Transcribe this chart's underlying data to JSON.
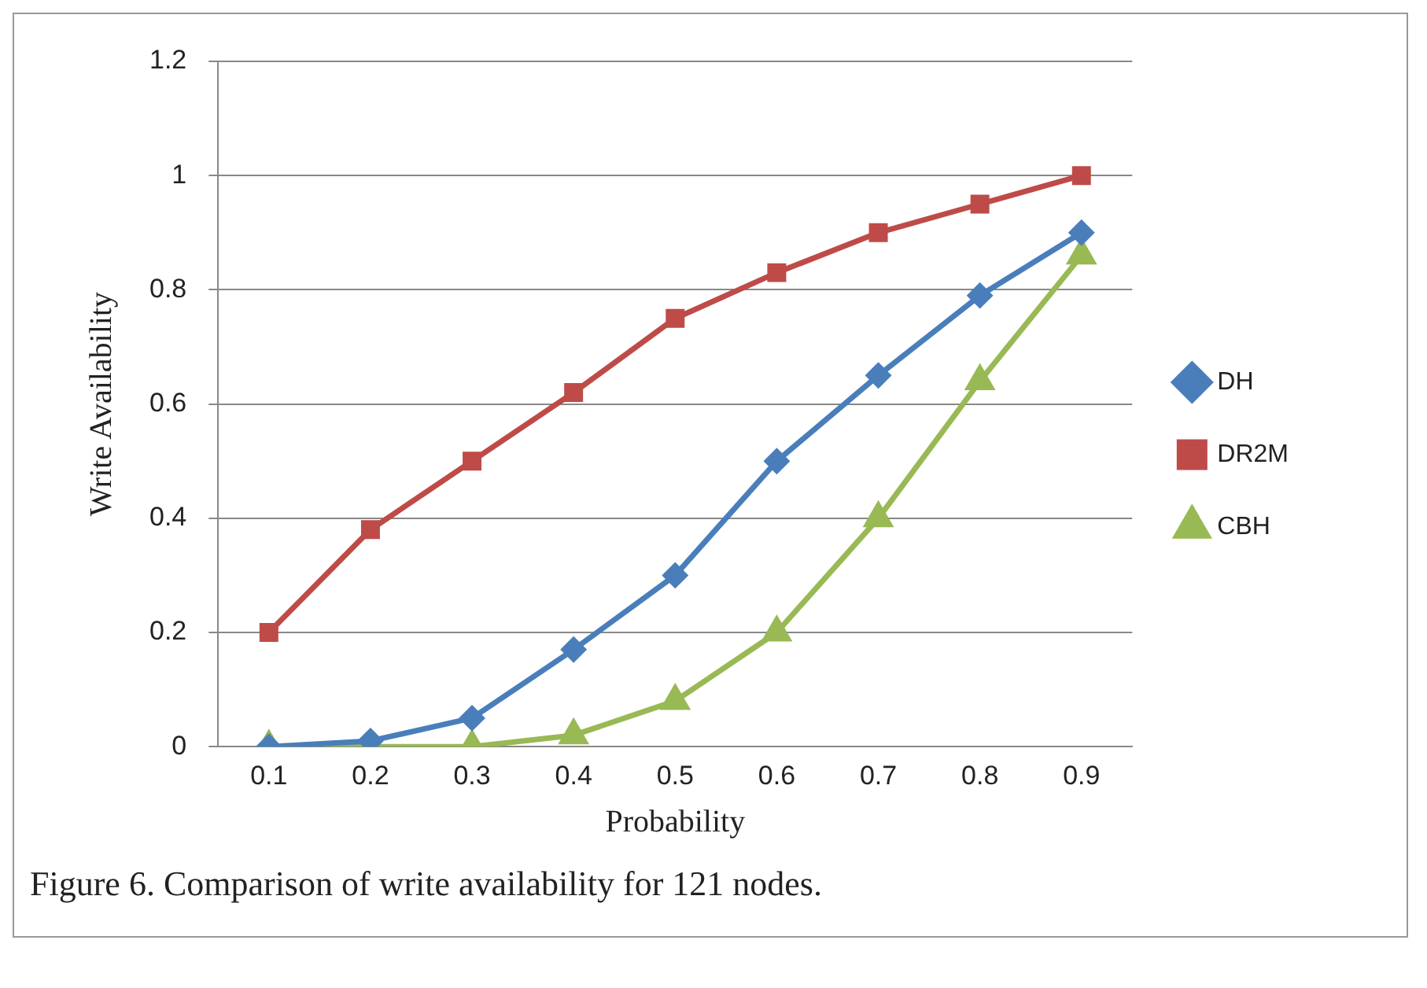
{
  "chart_data": {
    "type": "line",
    "xlabel": "Probability",
    "ylabel": "Write Availability",
    "categories": [
      "0.1",
      "0.2",
      "0.3",
      "0.4",
      "0.5",
      "0.6",
      "0.7",
      "0.8",
      "0.9"
    ],
    "series": [
      {
        "name": "DH",
        "color": "#4a7ebb",
        "marker": "diamond",
        "values": [
          0,
          0.01,
          0.05,
          0.17,
          0.3,
          0.5,
          0.65,
          0.79,
          0.9
        ]
      },
      {
        "name": "DR2M",
        "color": "#be4b48",
        "marker": "square",
        "values": [
          0.2,
          0.38,
          0.5,
          0.62,
          0.75,
          0.83,
          0.9,
          0.95,
          1.0
        ]
      },
      {
        "name": "CBH",
        "color": "#98b954",
        "marker": "triangle",
        "values": [
          0,
          0,
          0,
          0.02,
          0.08,
          0.2,
          0.4,
          0.64,
          0.86
        ]
      }
    ],
    "ylim": [
      0,
      1.2
    ],
    "yticks": [
      0,
      0.2,
      0.4,
      0.6,
      0.8,
      1,
      1.2
    ],
    "grid": "y",
    "legend": "right",
    "line_style": "solid",
    "annotations": [
      "Figure 6. Comparison of write availability for 121 nodes."
    ]
  }
}
